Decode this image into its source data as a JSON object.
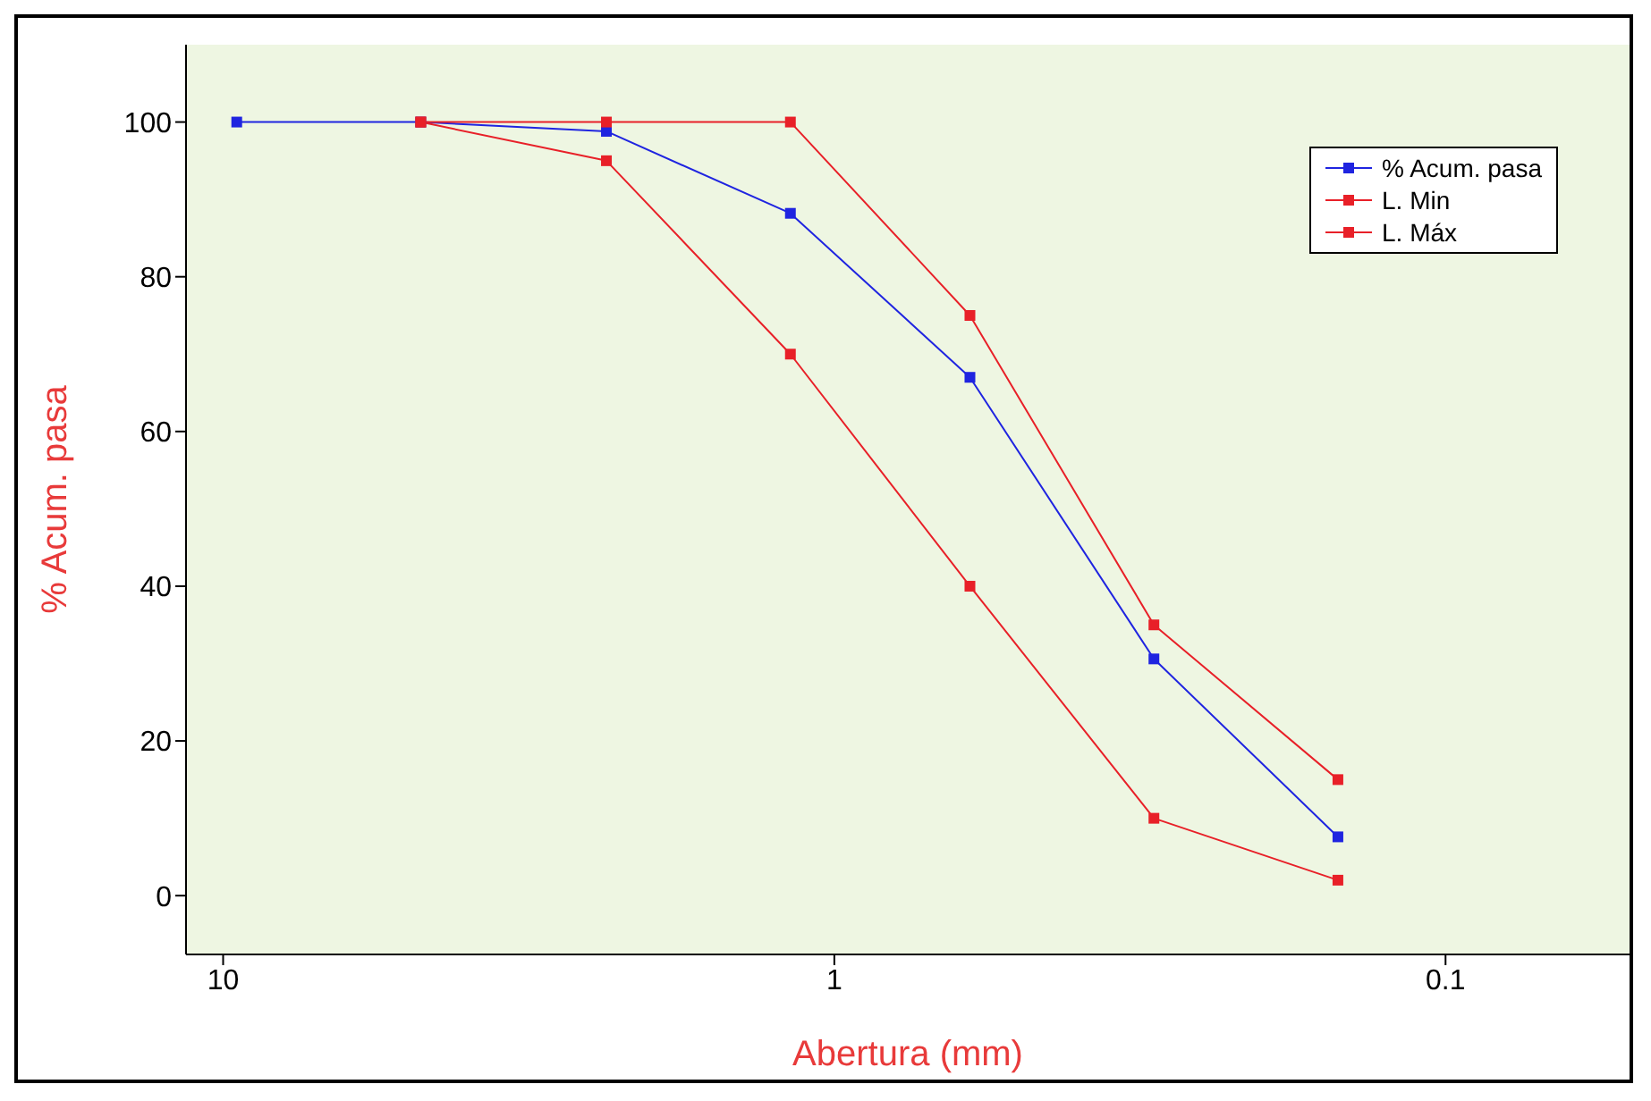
{
  "chart_data": {
    "type": "line",
    "xlabel": "Abertura (mm)",
    "ylabel": "% Acum. pasa",
    "log": "x",
    "xlim": [
      11.5,
      0.05
    ],
    "xticks": [
      10,
      1,
      0.1
    ],
    "ylim": [
      -7.6,
      110
    ],
    "yticks": [
      0,
      20,
      40,
      60,
      80,
      100
    ],
    "grid": false,
    "legend": "top right",
    "marker": "square",
    "series": [
      {
        "name": "% Acum. pasa",
        "color": "#1f24e0",
        "x": [
          9.5,
          4.75,
          2.36,
          1.18,
          0.6,
          0.3,
          0.15
        ],
        "values": [
          100,
          100,
          98.8,
          88.2,
          67,
          30.6,
          7.6
        ]
      },
      {
        "name": "L. Min",
        "color": "#e82028",
        "x": [
          4.75,
          2.36,
          1.18,
          0.6,
          0.3,
          0.15
        ],
        "values": [
          100,
          95,
          70,
          40,
          10,
          2
        ]
      },
      {
        "name": "L. Máx",
        "color": "#e82028",
        "x": [
          4.75,
          2.36,
          1.18,
          0.6,
          0.3,
          0.15
        ],
        "values": [
          100,
          100,
          100,
          75,
          35,
          15
        ]
      }
    ]
  }
}
